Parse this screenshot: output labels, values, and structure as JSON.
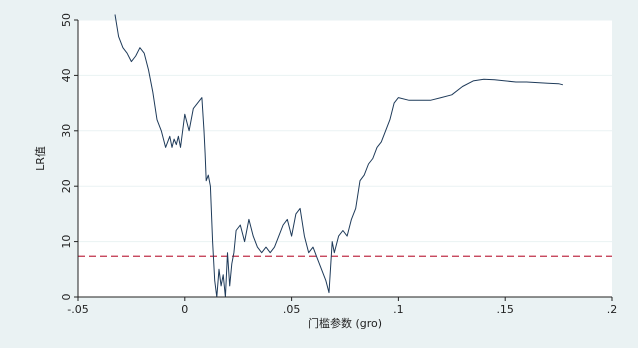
{
  "chart_data": {
    "type": "line",
    "xlabel": "门槛参数 (gro)",
    "ylabel": "LR值",
    "xlim": [
      -0.05,
      0.2
    ],
    "ylim": [
      0,
      50
    ],
    "xticks": [
      -0.05,
      0,
      0.05,
      0.1,
      0.15,
      0.2
    ],
    "xtick_labels": [
      "-.05",
      "0",
      ".05",
      ".1",
      ".15",
      ".2"
    ],
    "yticks": [
      0,
      10,
      20,
      30,
      40,
      50
    ],
    "ytick_labels": [
      "0",
      "10",
      "20",
      "30",
      "40",
      "50"
    ],
    "grid": true,
    "reference_line": {
      "y": 7.35,
      "style": "dashed",
      "color": "#c0304a"
    },
    "series": [
      {
        "color": "#1f3b5a",
        "x": [
          -0.0327,
          -0.031,
          -0.029,
          -0.027,
          -0.025,
          -0.023,
          -0.021,
          -0.019,
          -0.017,
          -0.015,
          -0.013,
          -0.011,
          -0.009,
          -0.007,
          -0.006,
          -0.005,
          -0.004,
          -0.003,
          -0.002,
          0.0,
          0.002,
          0.004,
          0.006,
          0.008,
          0.009,
          0.0095,
          0.01,
          0.011,
          0.012,
          0.013,
          0.014,
          0.015,
          0.016,
          0.017,
          0.018,
          0.019,
          0.02,
          0.021,
          0.022,
          0.023,
          0.024,
          0.026,
          0.028,
          0.03,
          0.032,
          0.034,
          0.036,
          0.038,
          0.04,
          0.042,
          0.044,
          0.046,
          0.048,
          0.05,
          0.052,
          0.054,
          0.056,
          0.058,
          0.06,
          0.062,
          0.064,
          0.066,
          0.0675,
          0.069,
          0.07,
          0.072,
          0.074,
          0.076,
          0.078,
          0.08,
          0.082,
          0.084,
          0.086,
          0.088,
          0.09,
          0.092,
          0.094,
          0.096,
          0.098,
          0.1,
          0.105,
          0.11,
          0.115,
          0.12,
          0.125,
          0.13,
          0.135,
          0.14,
          0.145,
          0.15,
          0.155,
          0.16,
          0.165,
          0.17,
          0.175,
          0.177
        ],
        "y": [
          51,
          47,
          45,
          44,
          42.5,
          43.5,
          45,
          44,
          41,
          37,
          32,
          30,
          27,
          29,
          27,
          28.5,
          27.5,
          29,
          27,
          33,
          30,
          34,
          35,
          36,
          30,
          26,
          21,
          22,
          20,
          10,
          3,
          0,
          5,
          2,
          4,
          0,
          8,
          2,
          6,
          8,
          12,
          13,
          10,
          14,
          11,
          9,
          8,
          9,
          8,
          9,
          11,
          13,
          14,
          11,
          15,
          16,
          11,
          8,
          9,
          7,
          5,
          3,
          0.8,
          10,
          8,
          11,
          12,
          11,
          14,
          16,
          21,
          22,
          24,
          25,
          27,
          28,
          30,
          32,
          35,
          36,
          35.5,
          35.5,
          35.5,
          36,
          36.5,
          38,
          39,
          39.3,
          39.2,
          39.0,
          38.8,
          38.8,
          38.7,
          38.6,
          38.5,
          38.3
        ]
      }
    ]
  }
}
